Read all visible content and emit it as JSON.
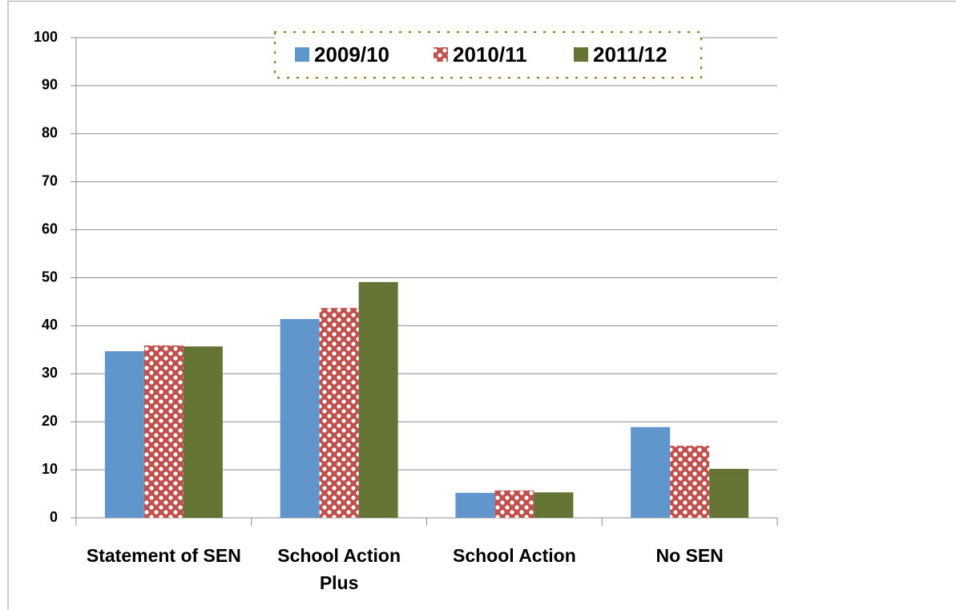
{
  "chart_data": {
    "type": "bar",
    "categories": [
      "Statement of SEN",
      "School Action Plus",
      "School Action",
      "No SEN"
    ],
    "series": [
      {
        "name": "2009/10",
        "color": "#6096cc",
        "values": [
          34.7,
          41.4,
          5.2,
          18.9
        ]
      },
      {
        "name": "2010/11",
        "color": "#c0504d",
        "fill_pattern": "checker",
        "values": [
          35.9,
          43.7,
          5.7,
          15.0
        ]
      },
      {
        "name": "2011/12",
        "color": "#647434",
        "values": [
          35.7,
          49.1,
          5.3,
          10.2
        ]
      }
    ],
    "ylim": [
      0,
      100
    ],
    "yticks": [
      0,
      10,
      20,
      30,
      40,
      50,
      60,
      70,
      80,
      90,
      100
    ],
    "grid": true,
    "legend": "top"
  }
}
